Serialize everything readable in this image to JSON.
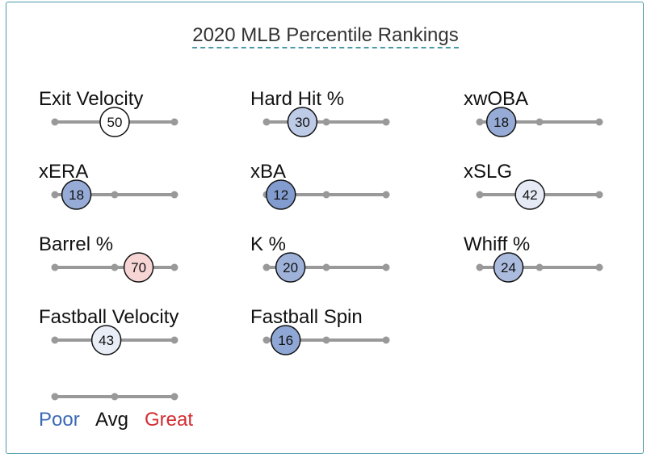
{
  "chart_data": {
    "type": "percentile-slider",
    "title": "2020 MLB Percentile Rankings",
    "scale": [
      0,
      100
    ],
    "metrics": [
      {
        "label": "Exit Velocity",
        "percentile": 50
      },
      {
        "label": "Hard Hit %",
        "percentile": 30
      },
      {
        "label": "xwOBA",
        "percentile": 18
      },
      {
        "label": "xERA",
        "percentile": 18
      },
      {
        "label": "xBA",
        "percentile": 12
      },
      {
        "label": "xSLG",
        "percentile": 42
      },
      {
        "label": "Barrel %",
        "percentile": 70
      },
      {
        "label": "K %",
        "percentile": 20
      },
      {
        "label": "Whiff %",
        "percentile": 24
      },
      {
        "label": "Fastball Velocity",
        "percentile": 43
      },
      {
        "label": "Fastball Spin",
        "percentile": 16
      }
    ],
    "legend": [
      {
        "label": "Poor",
        "color": "#3b6ab5"
      },
      {
        "label": "Avg",
        "color": "#111111"
      },
      {
        "label": "Great",
        "color": "#d22d32"
      }
    ]
  }
}
